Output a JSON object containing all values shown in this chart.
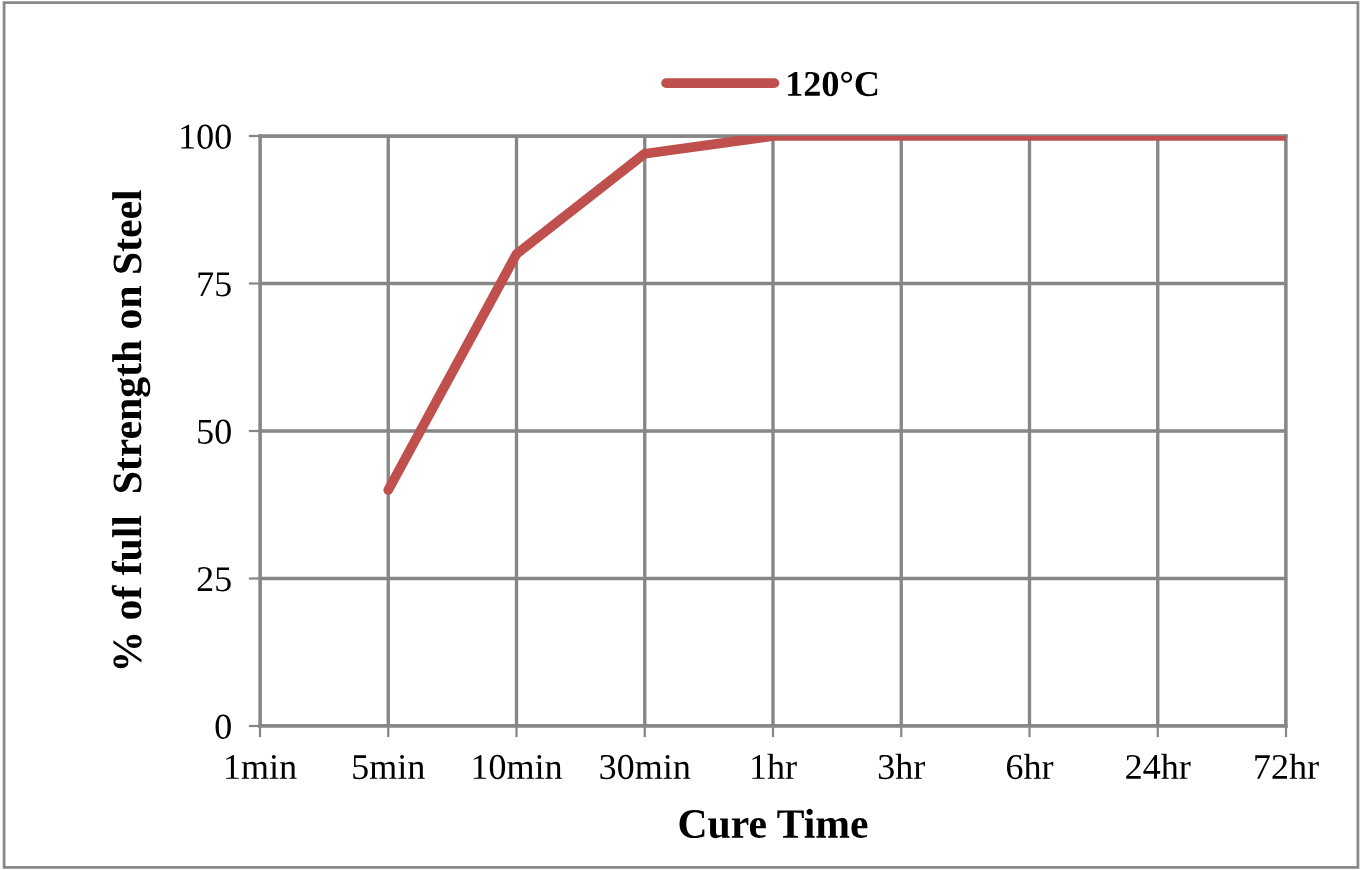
{
  "chart_data": {
    "type": "line",
    "xlabel": "Cure Time",
    "ylabel": "% of full  Strength on Steel",
    "categories": [
      "1min",
      "5min",
      "10min",
      "30min",
      "1hr",
      "3hr",
      "6hr",
      "24hr",
      "72hr"
    ],
    "series": [
      {
        "name": "120°C",
        "color": "#c0504d",
        "values": [
          null,
          40,
          80,
          97,
          100,
          100,
          100,
          100,
          100
        ]
      }
    ],
    "ylim": [
      0,
      100
    ],
    "yticks": [
      0,
      25,
      50,
      75,
      100
    ],
    "grid": true,
    "legend": "top",
    "marker": "none",
    "line_style": "solid"
  }
}
